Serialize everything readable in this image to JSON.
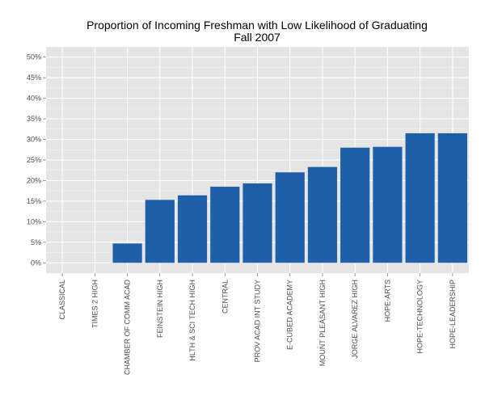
{
  "chart_data": {
    "type": "bar",
    "title": "Proportion of Incoming Freshman with Low Likelihood of Graduating",
    "subtitle": "Fall 2007",
    "xlabel": "",
    "ylabel": "",
    "categories": [
      "CLASSICAL",
      "TIMES 2 HIGH",
      "CHAMBER OF COMM ACAD",
      "FEINSTEIN HIGH",
      "HLTH & SCI TECH HIGH",
      "CENTRAL",
      "PROV ACAD INT STUDY",
      "E-CUBED ACADEMY",
      "MOUNT PLEASANT HIGH",
      "JORGE ALVAREZ HIGH",
      "HOPE-ARTS",
      "HOPE-TECHNOLOGY",
      "HOPE-LEADERSHIP"
    ],
    "values": [
      0,
      0,
      4.7,
      15.3,
      16.4,
      18.5,
      19.3,
      22.0,
      23.3,
      28.0,
      28.2,
      31.5,
      31.5
    ],
    "ylim": [
      -2.5,
      52.5
    ],
    "yticks": [
      0,
      5,
      10,
      15,
      20,
      25,
      30,
      35,
      40,
      45,
      50
    ],
    "ytick_labels": [
      "0%",
      "5%",
      "10%",
      "15%",
      "20%",
      "25%",
      "30%",
      "35%",
      "40%",
      "45%",
      "50%"
    ],
    "grid": true,
    "legend": "none",
    "colors": {
      "bar": "#1f5fa8",
      "panel": "#e5e5e5",
      "grid_major": "#ffffff",
      "grid_minor": "#f2f2f2"
    }
  }
}
